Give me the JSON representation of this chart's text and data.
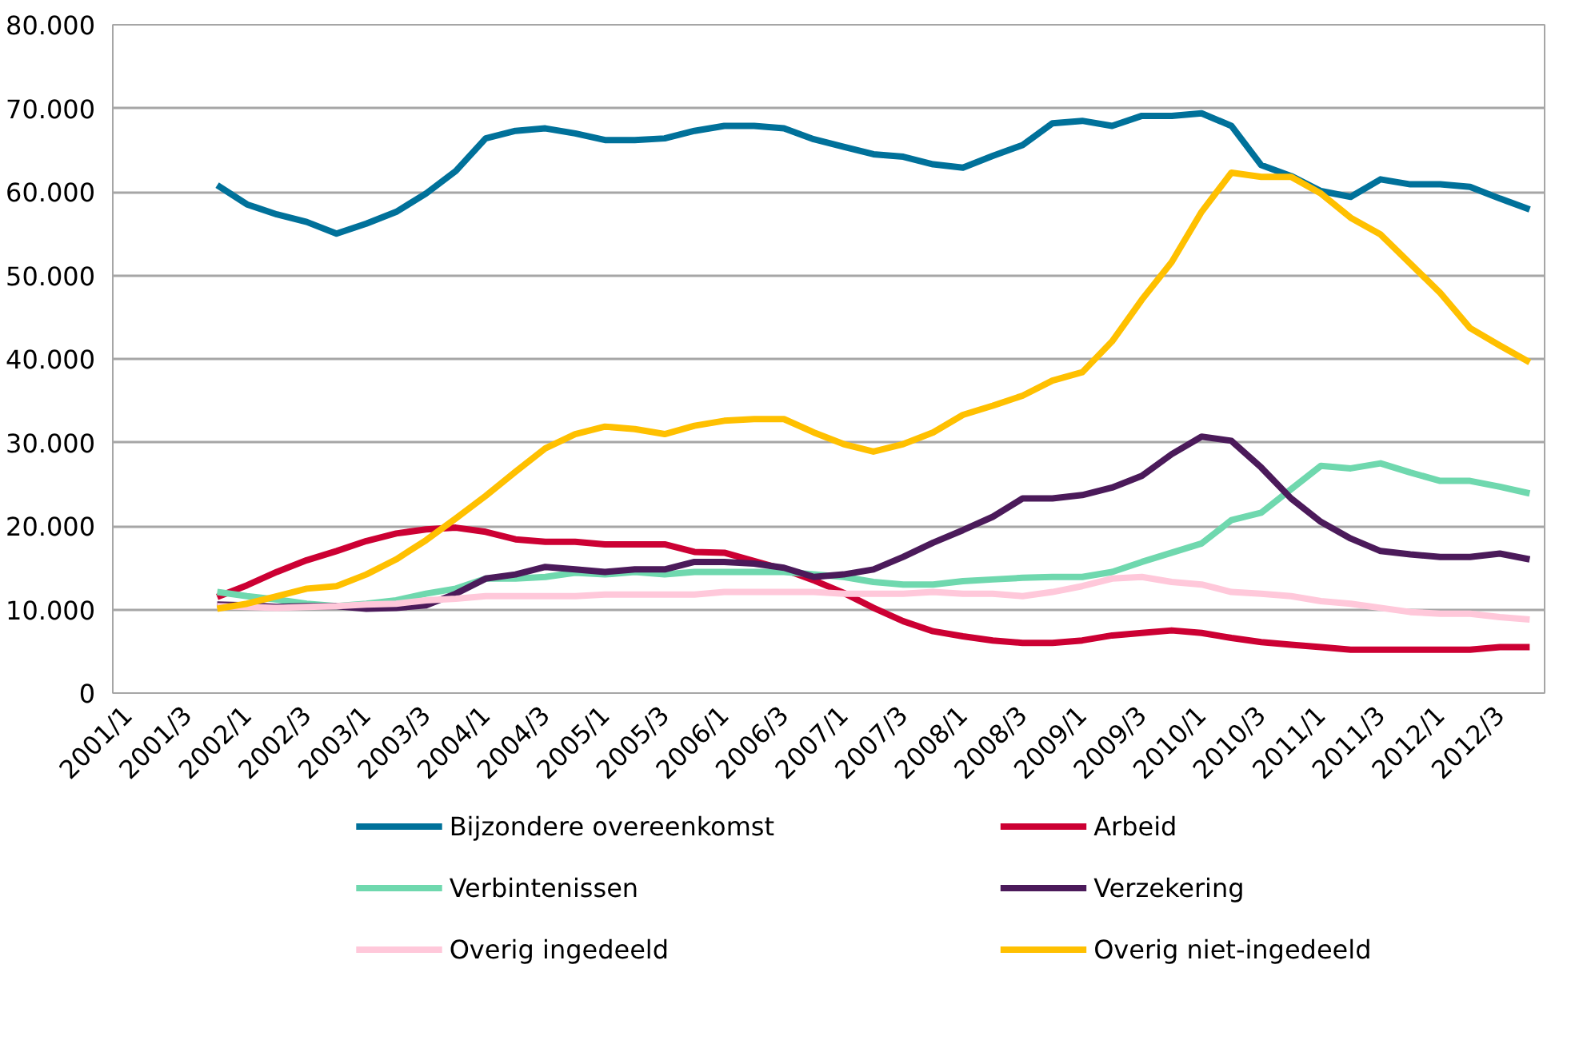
{
  "chart_data": {
    "type": "line",
    "categories": [
      "2001/1",
      null,
      "2001/3",
      null,
      "2002/1",
      null,
      "2002/3",
      null,
      "2003/1",
      null,
      "2003/3",
      null,
      "2004/1",
      null,
      "2004/3",
      null,
      "2005/1",
      null,
      "2005/3",
      null,
      "2006/1",
      null,
      "2006/3",
      null,
      "2007/1",
      null,
      "2007/3",
      null,
      "2008/1",
      null,
      "2008/3",
      null,
      "2009/1",
      null,
      "2009/3",
      null,
      "2010/1",
      null,
      "2010/3",
      null,
      "2011/1",
      null,
      "2011/3",
      null,
      "2012/1",
      null,
      "2012/3",
      null
    ],
    "series": [
      {
        "name": "Bijzondere overeenkomst",
        "color": "#00719a",
        "values": [
          null,
          null,
          null,
          60800,
          58500,
          57300,
          56400,
          55000,
          56200,
          57600,
          59800,
          62500,
          66400,
          67300,
          67600,
          67000,
          66200,
          66200,
          66400,
          67300,
          67900,
          67900,
          67600,
          66300,
          65400,
          64500,
          64200,
          63300,
          62900,
          64300,
          65600,
          68200,
          68500,
          67900,
          69100,
          69100,
          69400,
          67900,
          63200,
          61900,
          60100,
          59400,
          61500,
          60900,
          60900,
          60600,
          59200,
          57900
        ]
      },
      {
        "name": "Arbeid",
        "color": "#cc0033",
        "values": [
          null,
          null,
          null,
          11500,
          12900,
          14500,
          15900,
          17000,
          18200,
          19100,
          19600,
          19800,
          19300,
          18400,
          18100,
          18100,
          17800,
          17800,
          17800,
          16900,
          16800,
          15800,
          14800,
          13500,
          12000,
          10200,
          8600,
          7400,
          6800,
          6300,
          6000,
          6000,
          6300,
          6900,
          7200,
          7500,
          7200,
          6600,
          6100,
          5800,
          5500,
          5200,
          5200,
          5200,
          5200,
          5200,
          5500,
          5500
        ]
      },
      {
        "name": "Verbintenissen",
        "color": "#6fd8ae",
        "values": [
          null,
          null,
          null,
          12100,
          11600,
          11200,
          10700,
          10400,
          10700,
          11100,
          11900,
          12500,
          13700,
          13700,
          13900,
          14400,
          14200,
          14500,
          14200,
          14500,
          14500,
          14500,
          14500,
          14200,
          13900,
          13300,
          13000,
          13000,
          13400,
          13600,
          13800,
          13900,
          13900,
          14500,
          15700,
          16800,
          17900,
          20700,
          21600,
          24400,
          27200,
          26900,
          27500,
          26400,
          25400,
          25400,
          24700,
          23900
        ]
      },
      {
        "name": "Verzekering",
        "color": "#4b1a5a",
        "values": [
          null,
          null,
          null,
          10600,
          10500,
          10300,
          10400,
          10400,
          10100,
          10200,
          10500,
          11900,
          13700,
          14200,
          15100,
          14800,
          14500,
          14800,
          14800,
          15700,
          15700,
          15500,
          15000,
          13900,
          14200,
          14800,
          16300,
          18000,
          19500,
          21100,
          23300,
          23300,
          23700,
          24600,
          26000,
          28600,
          30700,
          30200,
          27000,
          23300,
          20500,
          18500,
          17000,
          16600,
          16300,
          16300,
          16700,
          16000
        ]
      },
      {
        "name": "Overig ingedeeld",
        "color": "#ffc8da",
        "values": [
          null,
          null,
          null,
          10400,
          10300,
          10200,
          10300,
          10400,
          10600,
          10700,
          11100,
          11300,
          11600,
          11600,
          11600,
          11600,
          11800,
          11800,
          11800,
          11800,
          12100,
          12100,
          12100,
          12100,
          11900,
          11900,
          11900,
          12100,
          11900,
          11900,
          11600,
          12100,
          12800,
          13700,
          13900,
          13300,
          13000,
          12100,
          11900,
          11600,
          11000,
          10700,
          10200,
          9700,
          9500,
          9500,
          9100,
          8800
        ]
      },
      {
        "name": "Overig niet-ingedeeld",
        "color": "#ffc000",
        "values": [
          null,
          null,
          null,
          10100,
          10700,
          11600,
          12500,
          12800,
          14200,
          16000,
          18300,
          20900,
          23600,
          26500,
          29300,
          31000,
          31900,
          31600,
          31000,
          32000,
          32600,
          32800,
          32800,
          31200,
          29800,
          28900,
          29800,
          31200,
          33300,
          34400,
          35600,
          37400,
          38400,
          42100,
          47100,
          51600,
          57600,
          62300,
          61800,
          61800,
          59800,
          56900,
          54900,
          51400,
          47900,
          43700,
          41600,
          39600
        ]
      }
    ],
    "ylim": [
      0,
      80000
    ],
    "yticks": [
      {
        "value": 0,
        "label": "0"
      },
      {
        "value": 10000,
        "label": "10.000"
      },
      {
        "value": 20000,
        "label": "20.000"
      },
      {
        "value": 30000,
        "label": "30.000"
      },
      {
        "value": 40000,
        "label": "40.000"
      },
      {
        "value": 50000,
        "label": "50.000"
      },
      {
        "value": 60000,
        "label": "60.000"
      },
      {
        "value": 70000,
        "label": "70.000"
      },
      {
        "value": 80000,
        "label": "80.000"
      }
    ],
    "grid": "y",
    "legend": "bottom",
    "marker": "none",
    "line_style": "solid"
  }
}
